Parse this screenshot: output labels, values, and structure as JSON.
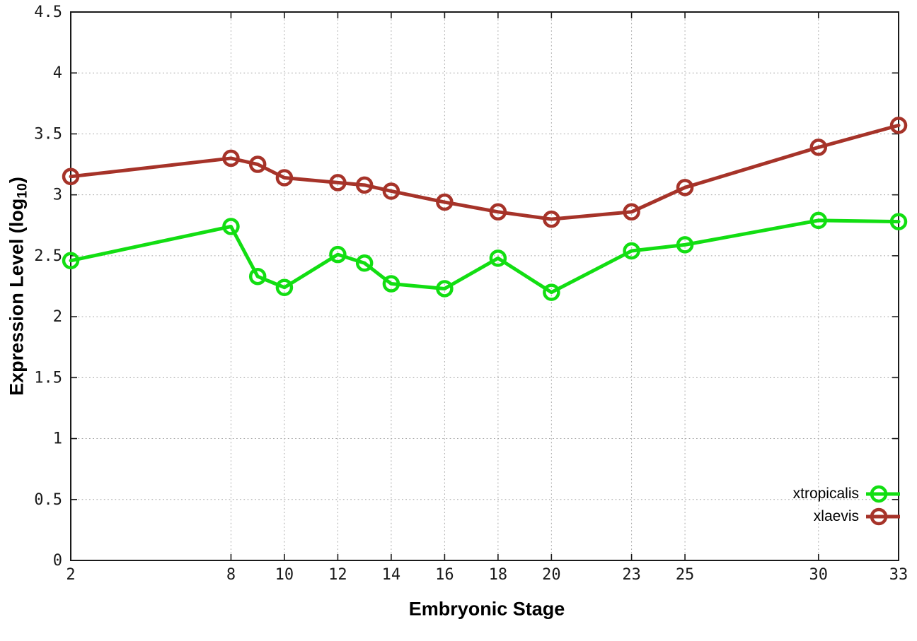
{
  "chart_data": {
    "type": "line",
    "title": "",
    "xlabel": "Embryonic Stage",
    "ylabel": "Expression Level (log10)",
    "ylabel_rich": {
      "main": "Expression Level (log",
      "sub": "10",
      "close": ")"
    },
    "x": [
      2,
      8,
      9,
      10,
      12,
      13,
      14,
      16,
      18,
      20,
      23,
      25,
      30,
      33
    ],
    "series": [
      {
        "name": "xtropicalis",
        "color": "#12de12",
        "marker": "open-circle",
        "values": [
          2.46,
          2.74,
          2.33,
          2.24,
          2.51,
          2.44,
          2.27,
          2.23,
          2.48,
          2.2,
          2.54,
          2.59,
          2.79,
          2.78
        ]
      },
      {
        "name": "xlaevis",
        "color": "#a63329",
        "marker": "open-circle",
        "values": [
          3.15,
          3.3,
          3.25,
          3.14,
          3.1,
          3.08,
          3.03,
          2.94,
          2.86,
          2.8,
          2.86,
          3.06,
          3.39,
          3.57
        ]
      }
    ],
    "xlim": [
      2,
      33
    ],
    "ylim": [
      0,
      4.5
    ],
    "xticks": [
      2,
      8,
      10,
      12,
      14,
      16,
      18,
      20,
      23,
      25,
      30,
      33
    ],
    "yticks": [
      0,
      0.5,
      1,
      1.5,
      2,
      2.5,
      3,
      3.5,
      4,
      4.5
    ],
    "grid": "dotted",
    "grid_color": "#a8a8a8",
    "axis_color": "#1a1a1a",
    "legend_position": "bottom-right-inside"
  }
}
